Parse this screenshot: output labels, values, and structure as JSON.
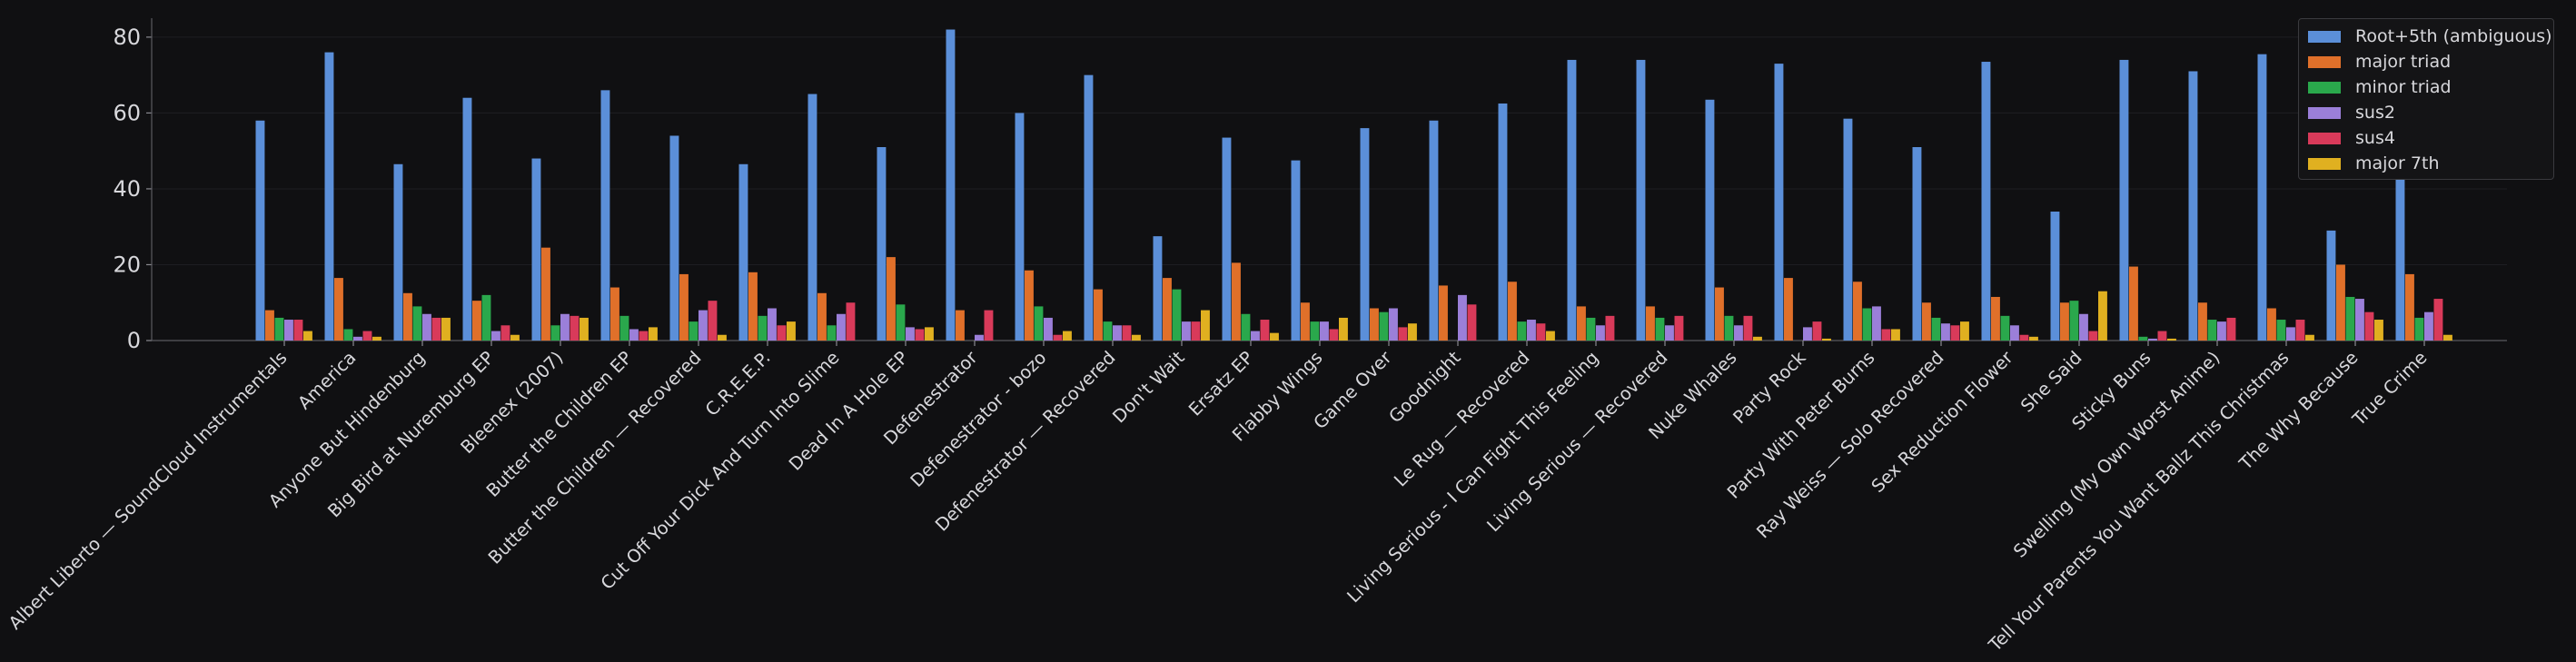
{
  "chart_data": {
    "type": "bar",
    "title": "",
    "xlabel": "",
    "ylabel": "",
    "ylim": [
      0,
      85
    ],
    "yticks": [
      0,
      20,
      40,
      60,
      80
    ],
    "grid": true,
    "legend_position": "top-right",
    "categories": [
      "Albert Liberto — SoundCloud Instrumentals",
      "America",
      "Anyone But Hindenburg",
      "Big Bird at Nuremburg EP",
      "Bleenex (2007)",
      "Butter the Children EP",
      "Butter the Children — Recovered",
      "C.R.E.E.P.",
      "Cut Off Your Dick And Turn Into Slime",
      "Dead In A Hole EP",
      "Defenestrator",
      "Defenestrator - bozo",
      "Defenestrator — Recovered",
      "Don't Wait",
      "Ersatz EP",
      "Flabby Wings",
      "Game Over",
      "Goodnight",
      "Le Rug — Recovered",
      "Living Serious - I Can Fight This Feeling",
      "Living Serious — Recovered",
      "Nuke Whales",
      "Party Rock",
      "Party With Peter Burns",
      "Ray Weiss — Solo Recovered",
      "Sex Reduction Flower",
      "She Said",
      "Sticky Buns",
      "Swelling (My Own Worst Anime)",
      "Tell Your Parents You Want Ballz This Christmas",
      "The Why Because",
      "True Crime"
    ],
    "series": [
      {
        "name": "Root+5th (ambiguous)",
        "color": "#5b8fd9",
        "values": [
          58,
          76,
          46.5,
          64,
          48,
          66,
          54,
          46.5,
          65,
          51,
          82,
          60,
          70,
          27.5,
          53.5,
          47.5,
          56,
          58,
          62.5,
          74,
          74,
          63.5,
          73,
          58.5,
          51,
          73.5,
          34,
          74,
          71,
          75.5,
          29,
          52
        ]
      },
      {
        "name": "major triad",
        "color": "#e0702a",
        "values": [
          8,
          16.5,
          12.5,
          10.5,
          24.5,
          14,
          17.5,
          18,
          12.5,
          22,
          8,
          18.5,
          13.5,
          16.5,
          20.5,
          10,
          8.5,
          14.5,
          15.5,
          9,
          9,
          14,
          16.5,
          15.5,
          10,
          11.5,
          10,
          19.5,
          10,
          8.5,
          20,
          17.5
        ]
      },
      {
        "name": "minor triad",
        "color": "#2aa84c",
        "values": [
          6,
          3,
          9,
          12,
          4,
          6.5,
          5,
          6.5,
          4,
          9.5,
          0,
          9,
          5,
          13.5,
          7,
          5,
          7.5,
          0,
          5,
          6,
          6,
          6.5,
          0,
          8.5,
          6,
          6.5,
          10.5,
          1,
          5.5,
          5.5,
          11.5,
          6
        ]
      },
      {
        "name": "sus2",
        "color": "#9b7fd9",
        "values": [
          5.5,
          1,
          7,
          2.5,
          7,
          3,
          8,
          8.5,
          7,
          3.5,
          1.5,
          6,
          4,
          5,
          2.5,
          5,
          8.5,
          12,
          5.5,
          4,
          4,
          4,
          3.5,
          9,
          4.5,
          4,
          7,
          0.5,
          5,
          3.5,
          11,
          7.5
        ]
      },
      {
        "name": "sus4",
        "color": "#d93a5a",
        "values": [
          5.5,
          2.5,
          6,
          4,
          6.5,
          2.5,
          10.5,
          4,
          10,
          3,
          8,
          1.5,
          4,
          5,
          5.5,
          3,
          3.5,
          9.5,
          4.5,
          6.5,
          6.5,
          6.5,
          5,
          3,
          4,
          1.5,
          2.5,
          2.5,
          6,
          5.5,
          7.5,
          11
        ]
      },
      {
        "name": "major 7th",
        "color": "#e0b020",
        "values": [
          2.5,
          1,
          6,
          1.5,
          6,
          3.5,
          1.5,
          5,
          0,
          3.5,
          0,
          2.5,
          1.5,
          8,
          2,
          6,
          4.5,
          0,
          2.5,
          0,
          0,
          1,
          0.5,
          3,
          5,
          1,
          13,
          0.5,
          0,
          1.5,
          5.5,
          1.5
        ]
      }
    ]
  }
}
